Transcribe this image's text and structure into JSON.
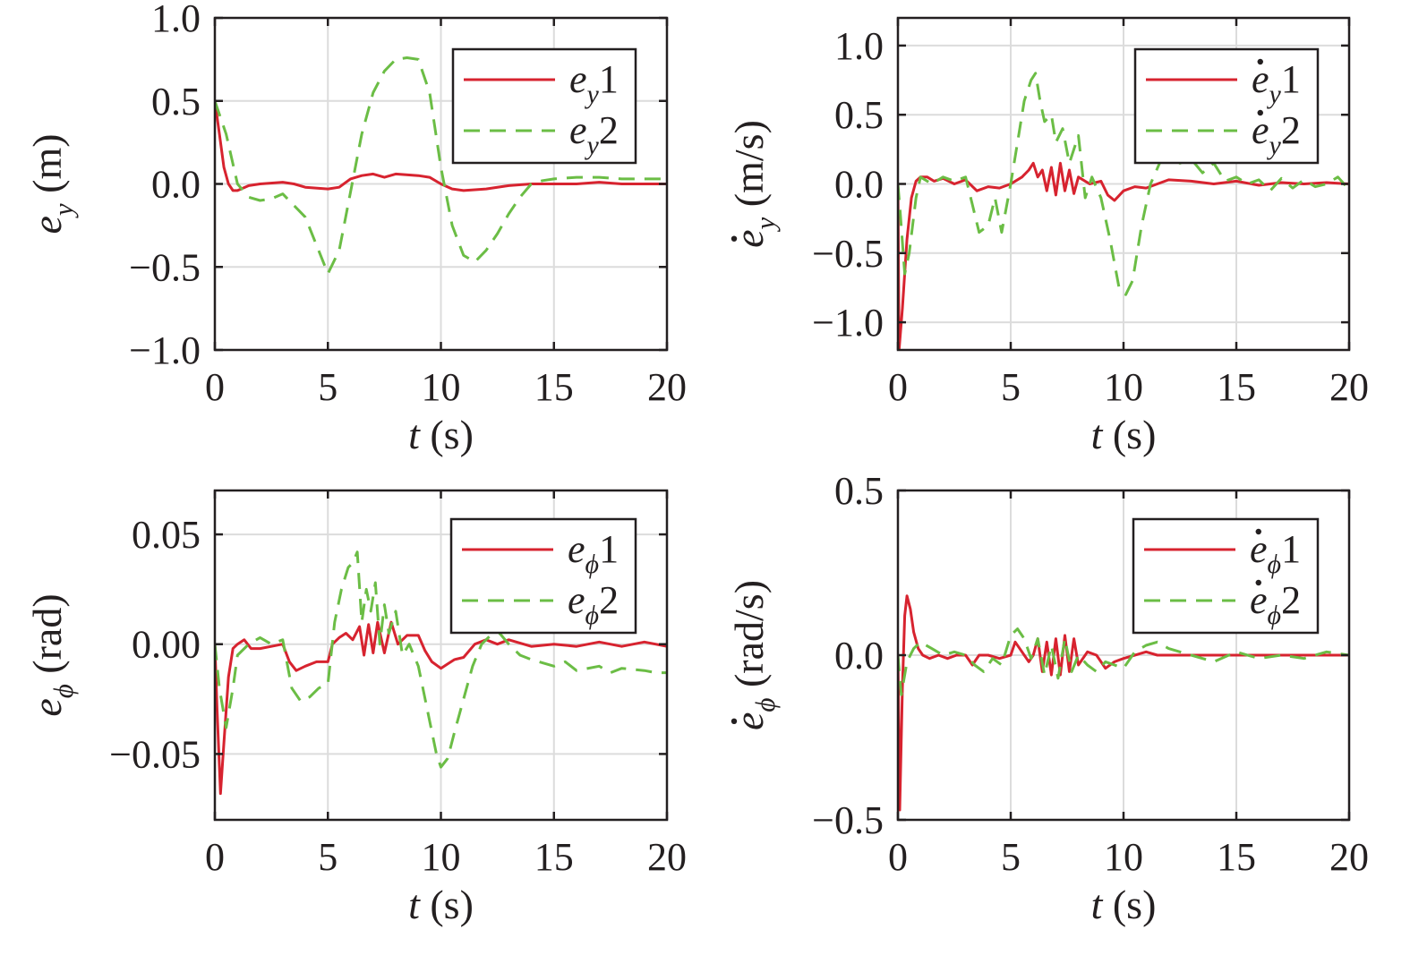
{
  "colors": {
    "series1": "#d7232f",
    "series2": "#6bbd45",
    "axis": "#231f20",
    "grid": "#dcdcdc"
  },
  "chart_data": [
    {
      "type": "line",
      "xlabel": {
        "var": "t",
        "unit": " (s)"
      },
      "ylabel": {
        "var": "e",
        "sub": "y",
        "dot": false,
        "unit": " (m)"
      },
      "xlim": [
        0,
        20
      ],
      "ylim": [
        -1.0,
        1.0
      ],
      "xticks": [
        0,
        5,
        10,
        15,
        20
      ],
      "yticks": [
        -1.0,
        -0.5,
        0.0,
        0.5,
        1.0
      ],
      "ytick_labels": [
        "−1.0",
        "−0.5",
        "0.0",
        "0.5",
        "1.0"
      ],
      "grid": true,
      "legend_position": "top-right",
      "series": [
        {
          "name": "eᵧ 1",
          "legend": {
            "var": "e",
            "sub": "y",
            "dot": false,
            "num": "1"
          },
          "style": "solid",
          "x": [
            0,
            0.2,
            0.4,
            0.6,
            0.8,
            1.0,
            1.5,
            2,
            3,
            3.5,
            4,
            5,
            5.5,
            6,
            6.5,
            7,
            7.5,
            8,
            9,
            9.5,
            10,
            10.5,
            11,
            12,
            13,
            14,
            15,
            16,
            17,
            18,
            19,
            20
          ],
          "y": [
            0.5,
            0.3,
            0.1,
            0.0,
            -0.04,
            -0.04,
            -0.01,
            0.0,
            0.01,
            0.0,
            -0.02,
            -0.03,
            -0.02,
            0.03,
            0.05,
            0.06,
            0.04,
            0.06,
            0.05,
            0.04,
            0.0,
            -0.03,
            -0.04,
            -0.03,
            -0.01,
            0.0,
            0.0,
            0.0,
            0.01,
            0.0,
            0.0,
            0.0
          ]
        },
        {
          "name": "eᵧ 2",
          "legend": {
            "var": "e",
            "sub": "y",
            "dot": false,
            "num": "2"
          },
          "style": "dashed",
          "x": [
            0,
            0.5,
            1.0,
            1.5,
            2,
            2.5,
            3,
            4,
            5,
            5.5,
            6,
            6.5,
            7,
            7.5,
            8,
            8.5,
            9,
            9.5,
            10,
            10.5,
            11,
            11.5,
            12,
            12.5,
            13,
            13.5,
            14,
            14.5,
            15,
            16,
            17,
            18,
            19,
            20
          ],
          "y": [
            0.5,
            0.3,
            0.0,
            -0.08,
            -0.1,
            -0.09,
            -0.06,
            -0.2,
            -0.54,
            -0.4,
            -0.05,
            0.3,
            0.55,
            0.68,
            0.75,
            0.76,
            0.75,
            0.55,
            0.1,
            -0.25,
            -0.43,
            -0.47,
            -0.4,
            -0.3,
            -0.18,
            -0.08,
            0.0,
            0.02,
            0.03,
            0.04,
            0.04,
            0.03,
            0.03,
            0.03
          ]
        }
      ]
    },
    {
      "type": "line",
      "xlabel": {
        "var": "t",
        "unit": " (s)"
      },
      "ylabel": {
        "var": "e",
        "sub": "y",
        "dot": true,
        "unit": " (m/s)"
      },
      "xlim": [
        0,
        20
      ],
      "ylim": [
        -1.2,
        1.2
      ],
      "xticks": [
        0,
        5,
        10,
        15,
        20
      ],
      "yticks": [
        -1.0,
        -0.5,
        0.0,
        0.5,
        1.0
      ],
      "ytick_labels": [
        "−1.0",
        "−0.5",
        "0.0",
        "0.5",
        "1.0"
      ],
      "grid": true,
      "legend_position": "top-right",
      "series": [
        {
          "name": "ėᵧ 1",
          "legend": {
            "var": "e",
            "sub": "y",
            "dot": true,
            "num": "1"
          },
          "style": "solid",
          "x": [
            0,
            0.05,
            0.2,
            0.4,
            0.6,
            0.8,
            1.0,
            1.3,
            1.6,
            2,
            2.5,
            3,
            3.5,
            4,
            4.5,
            5,
            5.5,
            5.8,
            6.0,
            6.2,
            6.4,
            6.6,
            6.8,
            7.0,
            7.2,
            7.4,
            7.6,
            7.8,
            8.0,
            8.5,
            9,
            9.3,
            9.6,
            10,
            10.5,
            11,
            11.5,
            12,
            13,
            14,
            15,
            16,
            17,
            18,
            19,
            20
          ],
          "y": [
            0.0,
            -1.2,
            -0.9,
            -0.4,
            -0.1,
            0.02,
            0.05,
            0.05,
            0.02,
            0.04,
            0.0,
            0.03,
            -0.05,
            -0.02,
            -0.03,
            0.0,
            0.05,
            0.1,
            0.15,
            0.05,
            0.1,
            -0.05,
            0.12,
            -0.08,
            0.15,
            -0.05,
            0.1,
            -0.07,
            0.05,
            0.0,
            0.02,
            -0.08,
            -0.12,
            -0.05,
            -0.02,
            -0.03,
            0.0,
            0.03,
            0.02,
            0.0,
            0.02,
            -0.01,
            0.01,
            0.0,
            0.01,
            0.0
          ]
        },
        {
          "name": "ėᵧ 2",
          "legend": {
            "var": "e",
            "sub": "y",
            "dot": true,
            "num": "2"
          },
          "style": "dashed",
          "x": [
            0,
            0.1,
            0.3,
            0.5,
            0.8,
            1.0,
            1.5,
            2,
            2.5,
            3,
            3.3,
            3.6,
            4,
            4.3,
            4.6,
            5,
            5.3,
            5.6,
            5.9,
            6.1,
            6.3,
            6.5,
            6.8,
            7.0,
            7.3,
            7.6,
            8.0,
            8.3,
            8.6,
            9.0,
            9.4,
            9.8,
            10.1,
            10.4,
            10.8,
            11.2,
            11.6,
            12,
            12.5,
            13,
            13.5,
            14,
            14.5,
            15,
            15.5,
            16,
            16.5,
            17,
            17.5,
            18,
            18.5,
            19,
            19.5,
            20
          ],
          "y": [
            0.0,
            -0.2,
            -0.65,
            -0.5,
            -0.1,
            0.05,
            0.0,
            0.05,
            0.02,
            0.05,
            -0.15,
            -0.35,
            -0.3,
            -0.1,
            -0.35,
            0.0,
            0.3,
            0.6,
            0.75,
            0.8,
            0.6,
            0.45,
            0.5,
            0.3,
            0.4,
            0.15,
            0.35,
            -0.1,
            0.05,
            -0.1,
            -0.4,
            -0.75,
            -0.8,
            -0.7,
            -0.3,
            0.0,
            0.15,
            0.22,
            0.15,
            0.18,
            0.08,
            0.15,
            0.02,
            0.05,
            0.0,
            0.03,
            -0.05,
            0.04,
            -0.03,
            0.03,
            -0.02,
            0.0,
            0.05,
            -0.04
          ]
        }
      ]
    },
    {
      "type": "line",
      "xlabel": {
        "var": "t",
        "unit": " (s)"
      },
      "ylabel": {
        "var": "e",
        "sub": "ϕ",
        "dot": false,
        "unit": " (rad)"
      },
      "xlim": [
        0,
        20
      ],
      "ylim": [
        -0.08,
        0.07
      ],
      "xticks": [
        0,
        5,
        10,
        15,
        20
      ],
      "yticks": [
        -0.05,
        0.0,
        0.05
      ],
      "ytick_labels": [
        "−0.05",
        "0.00",
        "0.05"
      ],
      "grid": true,
      "legend_position": "top-right",
      "series": [
        {
          "name": "eϕ 1",
          "legend": {
            "var": "e",
            "sub": "ϕ",
            "dot": false,
            "num": "1"
          },
          "style": "solid",
          "x": [
            0,
            0.1,
            0.25,
            0.4,
            0.6,
            0.8,
            1.0,
            1.3,
            1.6,
            2,
            2.5,
            3,
            3.3,
            3.6,
            4,
            4.5,
            5,
            5.2,
            5.5,
            5.8,
            6.1,
            6.4,
            6.6,
            6.8,
            7.0,
            7.2,
            7.5,
            7.8,
            8.1,
            8.5,
            9,
            9.3,
            9.6,
            10,
            10.3,
            10.6,
            11,
            11.5,
            12,
            12.5,
            13,
            14,
            15,
            16,
            17,
            18,
            19,
            20
          ],
          "y": [
            0.0,
            -0.03,
            -0.068,
            -0.045,
            -0.015,
            -0.002,
            0.0,
            0.002,
            -0.002,
            -0.002,
            -0.001,
            0.0,
            -0.008,
            -0.012,
            -0.01,
            -0.008,
            -0.008,
            0.0,
            0.003,
            0.005,
            0.002,
            0.008,
            -0.005,
            0.009,
            -0.004,
            0.01,
            -0.004,
            0.01,
            0.0,
            0.004,
            0.004,
            -0.003,
            -0.008,
            -0.011,
            -0.009,
            -0.007,
            -0.006,
            0.0,
            0.002,
            0.0,
            0.002,
            -0.001,
            0.0,
            -0.001,
            0.001,
            -0.001,
            0.001,
            -0.001
          ]
        },
        {
          "name": "eϕ 2",
          "legend": {
            "var": "e",
            "sub": "ϕ",
            "dot": false,
            "num": "2"
          },
          "style": "dashed",
          "x": [
            0,
            0.2,
            0.5,
            0.8,
            1.0,
            1.5,
            2,
            2.5,
            3,
            3.4,
            3.8,
            4.2,
            4.6,
            5,
            5.3,
            5.6,
            5.9,
            6.1,
            6.3,
            6.5,
            6.7,
            6.9,
            7.1,
            7.3,
            7.5,
            7.7,
            8.0,
            8.3,
            8.6,
            9.0,
            9.4,
            9.8,
            10.0,
            10.3,
            10.6,
            11,
            11.4,
            11.8,
            12.2,
            12.6,
            13,
            13.5,
            14,
            15,
            15.5,
            16,
            17,
            17.5,
            18,
            19,
            19.5,
            20
          ],
          "y": [
            0.0,
            -0.02,
            -0.038,
            -0.02,
            -0.005,
            0.0,
            0.003,
            0.0,
            0.002,
            -0.02,
            -0.026,
            -0.024,
            -0.02,
            -0.018,
            0.01,
            0.025,
            0.035,
            0.037,
            0.042,
            0.01,
            0.025,
            0.015,
            0.028,
            0.0,
            0.018,
            0.005,
            0.015,
            -0.005,
            0.0,
            -0.01,
            -0.03,
            -0.05,
            -0.056,
            -0.052,
            -0.04,
            -0.025,
            -0.01,
            0.0,
            0.004,
            0.005,
            0.0,
            -0.005,
            -0.007,
            -0.01,
            -0.008,
            -0.012,
            -0.01,
            -0.013,
            -0.011,
            -0.012,
            -0.013,
            -0.013
          ]
        }
      ]
    },
    {
      "type": "line",
      "xlabel": {
        "var": "t",
        "unit": " (s)"
      },
      "ylabel": {
        "var": "e",
        "sub": "ϕ",
        "dot": true,
        "unit": " (rad/s)"
      },
      "xlim": [
        0,
        20
      ],
      "ylim": [
        -0.5,
        0.5
      ],
      "xticks": [
        0,
        5,
        10,
        15,
        20
      ],
      "yticks": [
        -0.5,
        0.0,
        0.5
      ],
      "ytick_labels": [
        "−0.5",
        "0.0",
        "0.5"
      ],
      "grid": true,
      "legend_position": "top-right",
      "series": [
        {
          "name": "ėϕ 1",
          "legend": {
            "var": "e",
            "sub": "ϕ",
            "dot": true,
            "num": "1"
          },
          "style": "solid",
          "x": [
            0,
            0.08,
            0.2,
            0.3,
            0.4,
            0.55,
            0.7,
            0.9,
            1.1,
            1.4,
            1.8,
            2.2,
            2.6,
            3.0,
            3.3,
            3.6,
            4,
            4.5,
            5,
            5.2,
            5.5,
            5.8,
            6.0,
            6.2,
            6.4,
            6.6,
            6.8,
            7.0,
            7.2,
            7.4,
            7.6,
            7.8,
            8.0,
            8.4,
            8.8,
            9.2,
            9.6,
            10,
            10.5,
            11,
            11.5,
            12,
            13,
            14,
            15,
            16,
            17,
            18,
            19,
            20
          ],
          "y": [
            0.0,
            -0.47,
            -0.1,
            0.12,
            0.18,
            0.14,
            0.07,
            0.02,
            0.0,
            -0.01,
            0.0,
            -0.01,
            0.0,
            0.0,
            -0.03,
            0.0,
            0.0,
            -0.01,
            0.0,
            0.04,
            0.01,
            -0.02,
            0.0,
            0.05,
            -0.05,
            0.04,
            -0.06,
            0.05,
            -0.06,
            0.06,
            -0.05,
            0.05,
            -0.03,
            0.01,
            0.0,
            -0.04,
            -0.02,
            -0.01,
            0.0,
            0.01,
            0.0,
            0.0,
            0.0,
            0.0,
            0.0,
            0.0,
            0.0,
            0.0,
            0.0,
            0.0
          ]
        },
        {
          "name": "ėϕ 2",
          "legend": {
            "var": "e",
            "sub": "ϕ",
            "dot": true,
            "num": "2"
          },
          "style": "dashed",
          "x": [
            0,
            0.15,
            0.4,
            0.7,
            1.0,
            1.5,
            2,
            2.5,
            3,
            3.4,
            3.8,
            4.2,
            4.6,
            5,
            5.3,
            5.6,
            5.9,
            6.2,
            6.5,
            6.8,
            7.1,
            7.4,
            7.7,
            8.0,
            8.4,
            8.8,
            9.2,
            9.6,
            10,
            10.5,
            11,
            11.5,
            12,
            12.5,
            13,
            14,
            15,
            16,
            17,
            18,
            19,
            20
          ],
          "y": [
            0.0,
            -0.12,
            -0.02,
            0.02,
            0.04,
            0.02,
            0.0,
            0.01,
            0.0,
            -0.03,
            -0.05,
            -0.01,
            -0.03,
            0.06,
            0.08,
            0.05,
            -0.01,
            0.05,
            -0.06,
            0.03,
            -0.07,
            0.05,
            -0.05,
            0.0,
            -0.03,
            -0.05,
            -0.02,
            -0.03,
            -0.04,
            0.01,
            0.03,
            0.04,
            0.02,
            0.01,
            0.0,
            -0.02,
            0.01,
            -0.01,
            0.0,
            -0.01,
            0.01,
            0.0
          ]
        }
      ]
    }
  ]
}
